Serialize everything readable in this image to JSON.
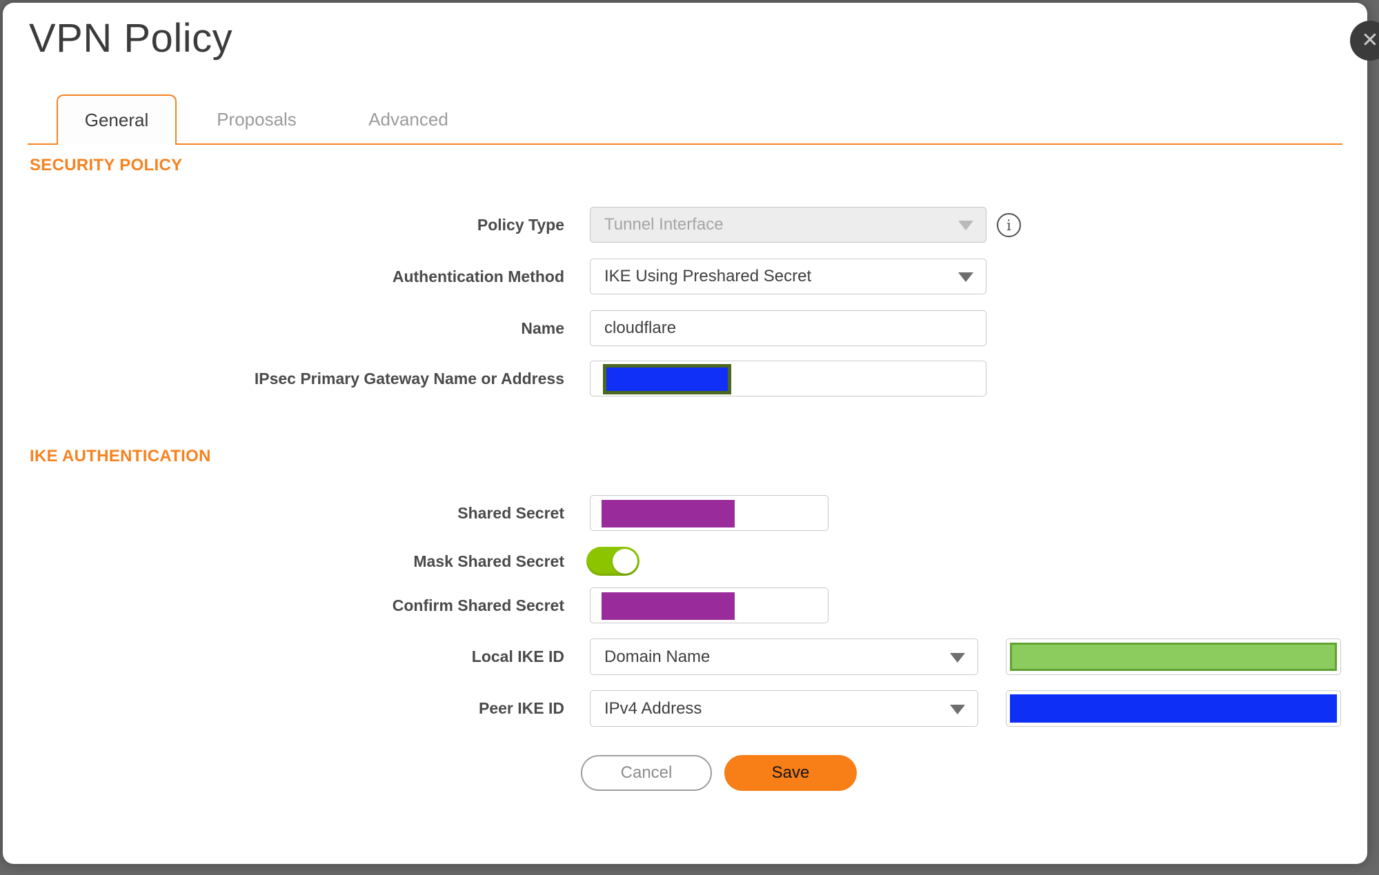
{
  "dialog": {
    "title": "VPN Policy"
  },
  "tabs": [
    {
      "label": "General",
      "active": true
    },
    {
      "label": "Proposals",
      "active": false
    },
    {
      "label": "Advanced",
      "active": false
    }
  ],
  "security_policy": {
    "heading": "SECURITY POLICY",
    "policy_type": {
      "label": "Policy Type",
      "value": "Tunnel Interface",
      "disabled": true
    },
    "authentication_method": {
      "label": "Authentication Method",
      "value": "IKE Using Preshared Secret"
    },
    "name": {
      "label": "Name",
      "value": "cloudflare"
    },
    "gateway": {
      "label": "IPsec Primary Gateway Name or Address",
      "value_redacted": true
    }
  },
  "ike_authentication": {
    "heading": "IKE AUTHENTICATION",
    "shared_secret": {
      "label": "Shared Secret",
      "value_redacted": true
    },
    "mask_shared_secret": {
      "label": "Mask Shared Secret",
      "enabled": true
    },
    "confirm_shared_secret": {
      "label": "Confirm Shared Secret",
      "value_redacted": true
    },
    "local_ike_id": {
      "label": "Local IKE ID",
      "type": "Domain Name",
      "value_redacted": true
    },
    "peer_ike_id": {
      "label": "Peer IKE ID",
      "type": "IPv4 Address",
      "value_redacted": true
    }
  },
  "buttons": {
    "cancel": "Cancel",
    "save": "Save"
  },
  "icons": {
    "close_glyph": "✕",
    "info_glyph": "i"
  },
  "colors": {
    "accent_orange": "#F6821F",
    "save_button_orange": "#F87E17",
    "toggle_green": "#8CC400",
    "redaction_purple": "#9A2B9A",
    "redaction_blue": "#0D2FF6",
    "redaction_green_fill": "#8CCB5E",
    "redaction_green_border": "#5FA230",
    "redaction_olive_border": "#4C671F",
    "backdrop_gray": "#686868"
  }
}
